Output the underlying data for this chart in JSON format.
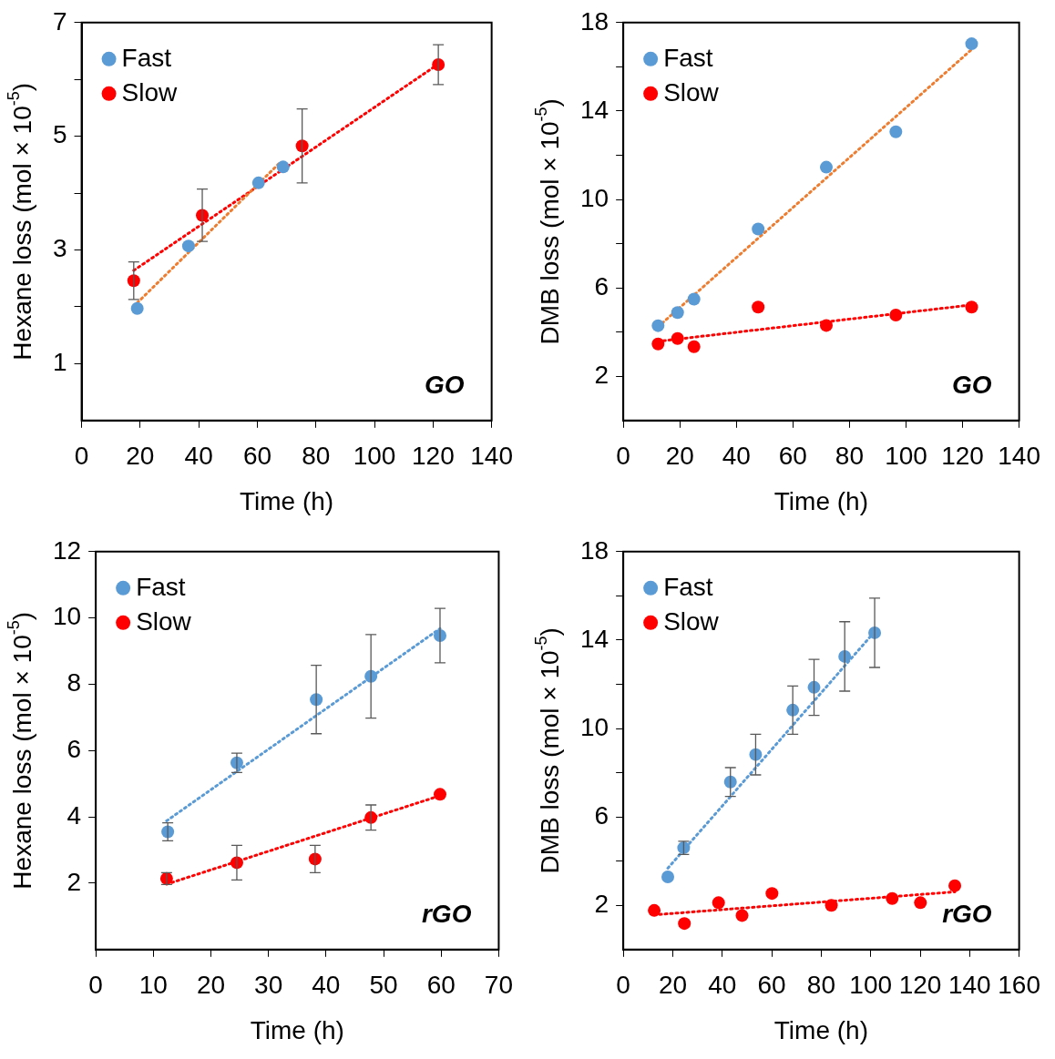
{
  "chart_data": [
    {
      "type": "scatter",
      "xlabel": "Time (h)",
      "ylabel": "Hexane loss (mol × 10$^{-5}$)",
      "xlim": [
        0,
        140
      ],
      "xticks": [
        0,
        20,
        40,
        60,
        80,
        100,
        120,
        140
      ],
      "ylim": [
        0,
        7
      ],
      "yticks": [
        {
          "value": 1,
          "label": "1"
        },
        {
          "value": 2,
          "label": null
        },
        {
          "value": 3,
          "label": "3"
        },
        {
          "value": 4,
          "label": null
        },
        {
          "value": 5,
          "label": "5"
        },
        {
          "value": 6,
          "label": null
        },
        {
          "value": 7,
          "label": "7"
        }
      ],
      "legend": "top left",
      "annotations": [
        "GO"
      ],
      "series": [
        {
          "name": "Fast",
          "color": "#5b9bd5",
          "marker": "circle",
          "x": [
            19,
            36.5,
            60.4,
            68.8
          ],
          "values": [
            1.97,
            3.07,
            4.18,
            4.46
          ]
        },
        {
          "name": "Slow",
          "color": "#ff0000",
          "marker": "circle",
          "x": [
            17.8,
            41.2,
            75.3,
            121.8
          ],
          "values": [
            2.46,
            3.61,
            4.83,
            6.26
          ],
          "errors": [
            0.33,
            0.46,
            0.65,
            0.35
          ]
        },
        {
          "type": "line",
          "line_style": "dotted",
          "color": "#ed7d31",
          "x": [
            19,
            68
          ],
          "values": [
            2.07,
            4.55
          ]
        },
        {
          "type": "line",
          "line_style": "dotted",
          "color": "#ff0000",
          "x": [
            17.8,
            121.8
          ],
          "values": [
            2.64,
            6.27
          ]
        }
      ]
    },
    {
      "type": "scatter",
      "xlabel": "Time (h)",
      "ylabel": "DMB loss (mol × 10$^{-5}$)",
      "xlim": [
        0,
        140
      ],
      "xticks": [
        0,
        20,
        40,
        60,
        80,
        100,
        120,
        140
      ],
      "ylim": [
        0,
        18
      ],
      "yticks": [
        {
          "value": 2,
          "label": "2"
        },
        {
          "value": 4,
          "label": null
        },
        {
          "value": 6,
          "label": "6"
        },
        {
          "value": 8,
          "label": null
        },
        {
          "value": 10,
          "label": "10"
        },
        {
          "value": 12,
          "label": null
        },
        {
          "value": 14,
          "label": "14"
        },
        {
          "value": 16,
          "label": null
        },
        {
          "value": 18,
          "label": "18"
        }
      ],
      "legend": "top left",
      "annotations": [
        "GO"
      ],
      "series": [
        {
          "name": "Fast",
          "color": "#5b9bd5",
          "marker": "circle",
          "x": [
            12.3,
            19.2,
            25,
            47.7,
            71.8,
            96.4,
            123.2
          ],
          "values": [
            4.29,
            4.88,
            5.49,
            8.66,
            11.46,
            13.06,
            17.04
          ]
        },
        {
          "name": "Slow",
          "color": "#ff0000",
          "marker": "circle",
          "x": [
            12.3,
            19.2,
            25,
            47.7,
            71.8,
            96.4,
            123.2
          ],
          "values": [
            3.46,
            3.71,
            3.34,
            5.13,
            4.3,
            4.77,
            5.13
          ]
        },
        {
          "type": "line",
          "line_style": "dotted",
          "color": "#ed7d31",
          "x": [
            12.3,
            123.2
          ],
          "values": [
            4.24,
            16.78
          ]
        },
        {
          "type": "line",
          "line_style": "dotted",
          "color": "#ff0000",
          "x": [
            12.3,
            123.2
          ],
          "values": [
            3.58,
            5.23
          ]
        }
      ]
    },
    {
      "type": "scatter",
      "xlabel": "Time (h)",
      "ylabel": "Hexane loss (mol × 10$^{-5}$)",
      "xlim": [
        0,
        70
      ],
      "xticks": [
        0,
        10,
        20,
        30,
        40,
        50,
        60,
        70
      ],
      "ylim": [
        0,
        12
      ],
      "yticks": [
        2,
        4,
        6,
        8,
        10,
        12
      ],
      "legend": "top left",
      "annotations": [
        "rGO"
      ],
      "series": [
        {
          "name": "Fast",
          "color": "#5b9bd5",
          "marker": "circle",
          "x": [
            12.5,
            24.5,
            38.3,
            47.8,
            59.8
          ],
          "values": [
            3.55,
            5.63,
            7.54,
            8.24,
            9.47
          ],
          "errors": [
            0.27,
            0.29,
            1.03,
            1.26,
            0.82
          ]
        },
        {
          "name": "Slow",
          "color": "#ff0000",
          "marker": "circle",
          "x": [
            12.3,
            24.5,
            38.1,
            47.8,
            59.8
          ],
          "values": [
            2.14,
            2.62,
            2.73,
            3.98,
            4.68
          ],
          "errors": [
            0.18,
            0.52,
            0.41,
            0.38,
            null
          ]
        },
        {
          "type": "line",
          "line_style": "dotted",
          "color": "#5b9bd5",
          "x": [
            12.3,
            59.8
          ],
          "values": [
            3.88,
            9.68
          ]
        },
        {
          "type": "line",
          "line_style": "dotted",
          "color": "#ff0000",
          "x": [
            12.3,
            59.8
          ],
          "values": [
            1.97,
            4.64
          ]
        }
      ]
    },
    {
      "type": "scatter",
      "xlabel": "Time (h)",
      "ylabel": "DMB loss (mol × 10$^{-5}$)",
      "xlim": [
        0,
        160
      ],
      "xticks": [
        0,
        20,
        40,
        60,
        80,
        100,
        120,
        140,
        160
      ],
      "ylim": [
        0,
        18
      ],
      "yticks": [
        {
          "value": 2,
          "label": "2"
        },
        {
          "value": 4,
          "label": null
        },
        {
          "value": 6,
          "label": "6"
        },
        {
          "value": 8,
          "label": null
        },
        {
          "value": 10,
          "label": "10"
        },
        {
          "value": 12,
          "label": null
        },
        {
          "value": 14,
          "label": "14"
        },
        {
          "value": 16,
          "label": null
        },
        {
          "value": 18,
          "label": "18"
        }
      ],
      "legend": "top left",
      "annotations": [
        "rGO"
      ],
      "series": [
        {
          "name": "Fast",
          "color": "#5b9bd5",
          "marker": "circle",
          "x": [
            18,
            24.4,
            43.3,
            53.5,
            68.5,
            77.1,
            89.5,
            101.6
          ],
          "values": [
            3.29,
            4.6,
            7.58,
            8.82,
            10.83,
            11.86,
            13.26,
            14.33
          ],
          "errors": [
            null,
            0.3,
            0.65,
            0.92,
            1.09,
            1.27,
            1.57,
            1.57
          ]
        },
        {
          "name": "Slow",
          "color": "#ff0000",
          "marker": "circle",
          "x": [
            12.5,
            24.7,
            38.5,
            48,
            60.1,
            84.1,
            108.7,
            120.1,
            134
          ],
          "values": [
            1.77,
            1.18,
            2.12,
            1.54,
            2.54,
            2,
            2.31,
            2.12,
            2.89
          ]
        },
        {
          "type": "line",
          "line_style": "dotted",
          "color": "#5b9bd5",
          "x": [
            18,
            101.6
          ],
          "values": [
            3.68,
            14.38
          ]
        },
        {
          "type": "line",
          "line_style": "dotted",
          "color": "#ff0000",
          "x": [
            12.5,
            134
          ],
          "values": [
            1.57,
            2.61
          ]
        }
      ]
    }
  ]
}
